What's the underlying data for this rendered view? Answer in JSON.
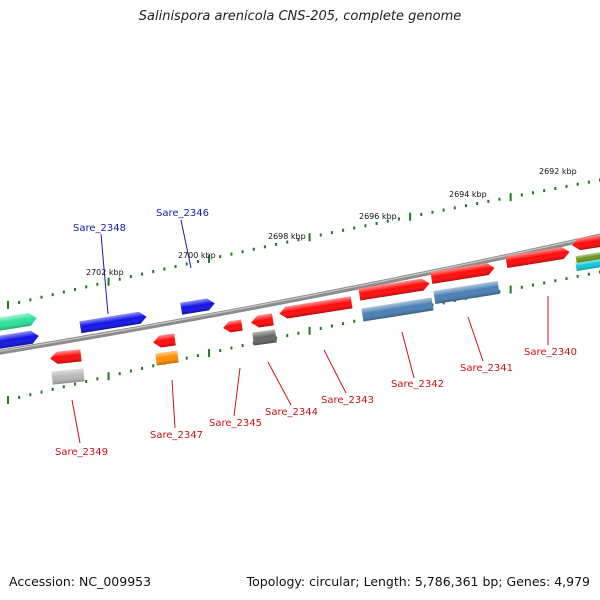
{
  "title": "Salinispora arenicola CNS-205, complete genome",
  "footer": {
    "accession": "Accession: NC_009953",
    "summary": "Topology: circular; Length: 5,786,361 bp; Genes: 4,979"
  },
  "colors": {
    "backbone": "#7d7d7d",
    "tick": "#1f7a1f",
    "label_forward": "#1a1ab0",
    "label_reverse": "#c81414",
    "gene_red": "#ff0a0a",
    "gene_blue": "#1212e6",
    "gene_steelblue": "#4a7fb4",
    "gene_green": "#2ee39a",
    "gene_gray": "#b8b8b8",
    "gene_darkgray": "#666666",
    "gene_orange": "#ff8c00",
    "gene_olive": "#6b9a1c",
    "gene_cyan": "#10c6d6"
  },
  "scale_labels": [
    "2702 kbp",
    "2700 kbp",
    "2698 kbp",
    "2696 kbp",
    "2694 kbp",
    "2692 kbp"
  ],
  "gene_labels_forward": [
    "Sare_2348",
    "Sare_2346"
  ],
  "gene_labels_reverse": [
    "Sare_2349",
    "Sare_2347",
    "Sare_2345",
    "Sare_2344",
    "Sare_2343",
    "Sare_2342",
    "Sare_2341",
    "Sare_2340"
  ]
}
